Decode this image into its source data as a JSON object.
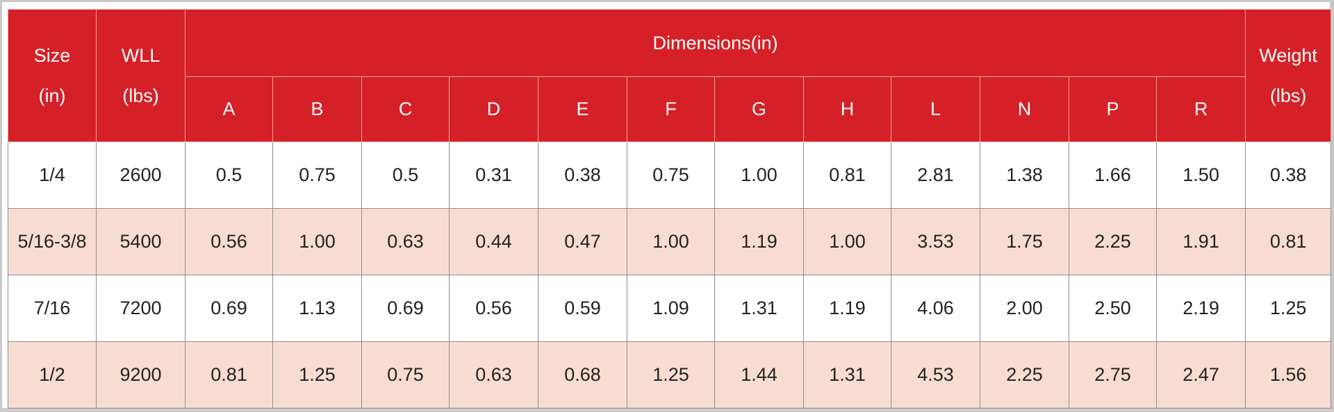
{
  "table": {
    "headers": {
      "size_line1": "Size",
      "size_line2": "(in)",
      "wll_line1": "WLL",
      "wll_line2": "(lbs)",
      "dimensions": "Dimensions(in)",
      "dim_cols": [
        "A",
        "B",
        "C",
        "D",
        "E",
        "F",
        "G",
        "H",
        "L",
        "N",
        "P",
        "R"
      ],
      "weight_line1": "Weight",
      "weight_line2": "(lbs)"
    },
    "rows": [
      {
        "size": "1/4",
        "wll": "2600",
        "dims": [
          "0.5",
          "0.75",
          "0.5",
          "0.31",
          "0.38",
          "0.75",
          "1.00",
          "0.81",
          "2.81",
          "1.38",
          "1.66",
          "1.50"
        ],
        "weight": "0.38"
      },
      {
        "size": "5/16-3/8",
        "wll": "5400",
        "dims": [
          "0.56",
          "1.00",
          "0.63",
          "0.44",
          "0.47",
          "1.00",
          "1.19",
          "1.00",
          "3.53",
          "1.75",
          "2.25",
          "1.91"
        ],
        "weight": "0.81"
      },
      {
        "size": "7/16",
        "wll": "7200",
        "dims": [
          "0.69",
          "1.13",
          "0.69",
          "0.56",
          "0.59",
          "1.09",
          "1.31",
          "1.19",
          "4.06",
          "2.00",
          "2.50",
          "2.19"
        ],
        "weight": "1.25"
      },
      {
        "size": "1/2",
        "wll": "9200",
        "dims": [
          "0.81",
          "1.25",
          "0.75",
          "0.63",
          "0.68",
          "1.25",
          "1.44",
          "1.31",
          "4.53",
          "2.25",
          "2.75",
          "2.47"
        ],
        "weight": "1.56"
      }
    ],
    "colors": {
      "header_bg": "#d62027",
      "header_text": "#ffffff",
      "row_alt_bg": "#f9dcd1",
      "row_bg": "#ffffff"
    }
  }
}
